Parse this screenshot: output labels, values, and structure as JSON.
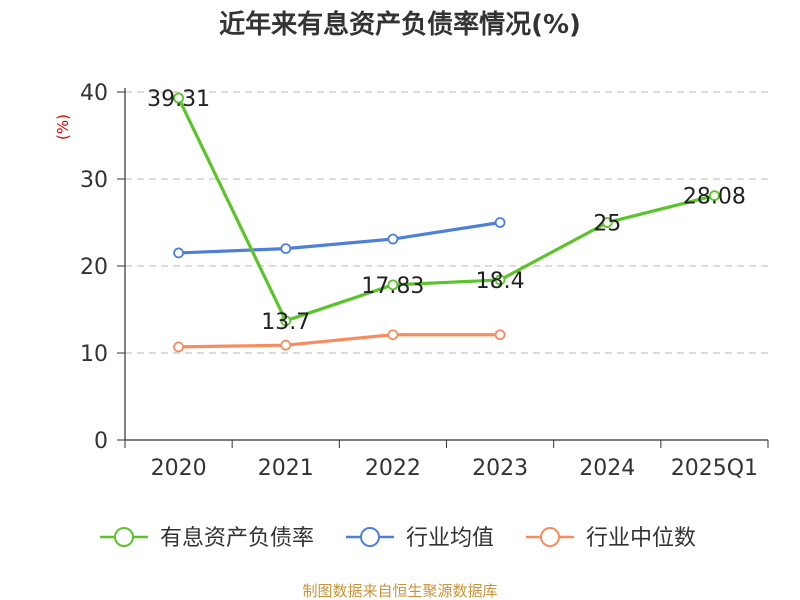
{
  "chart_data": {
    "type": "line",
    "title": "近年来有息资产负债率情况(%)",
    "ylabel": "(%)",
    "xlabel": "",
    "categories": [
      "2020",
      "2021",
      "2022",
      "2023",
      "2024",
      "2025Q1"
    ],
    "ylim": [
      0,
      40
    ],
    "yticks": [
      0,
      10,
      20,
      30,
      40
    ],
    "grid": true,
    "legend_position": "bottom",
    "series": [
      {
        "name": "有息资产负债率",
        "color": "#5cc42b",
        "values": [
          39.31,
          13.7,
          17.83,
          18.4,
          25,
          28.08
        ],
        "labels": [
          "39.31",
          "13.7",
          "17.83",
          "18.4",
          "25",
          "28.08"
        ]
      },
      {
        "name": "行业均值",
        "color": "#4f80d8",
        "values": [
          21.5,
          22.0,
          23.1,
          25.0,
          null,
          null
        ],
        "labels": null
      },
      {
        "name": "行业中位数",
        "color": "#f78c5f",
        "values": [
          10.7,
          10.9,
          12.1,
          12.1,
          null,
          null
        ],
        "labels": null
      }
    ]
  },
  "footer": {
    "source": "制图数据来自恒生聚源数据库"
  }
}
